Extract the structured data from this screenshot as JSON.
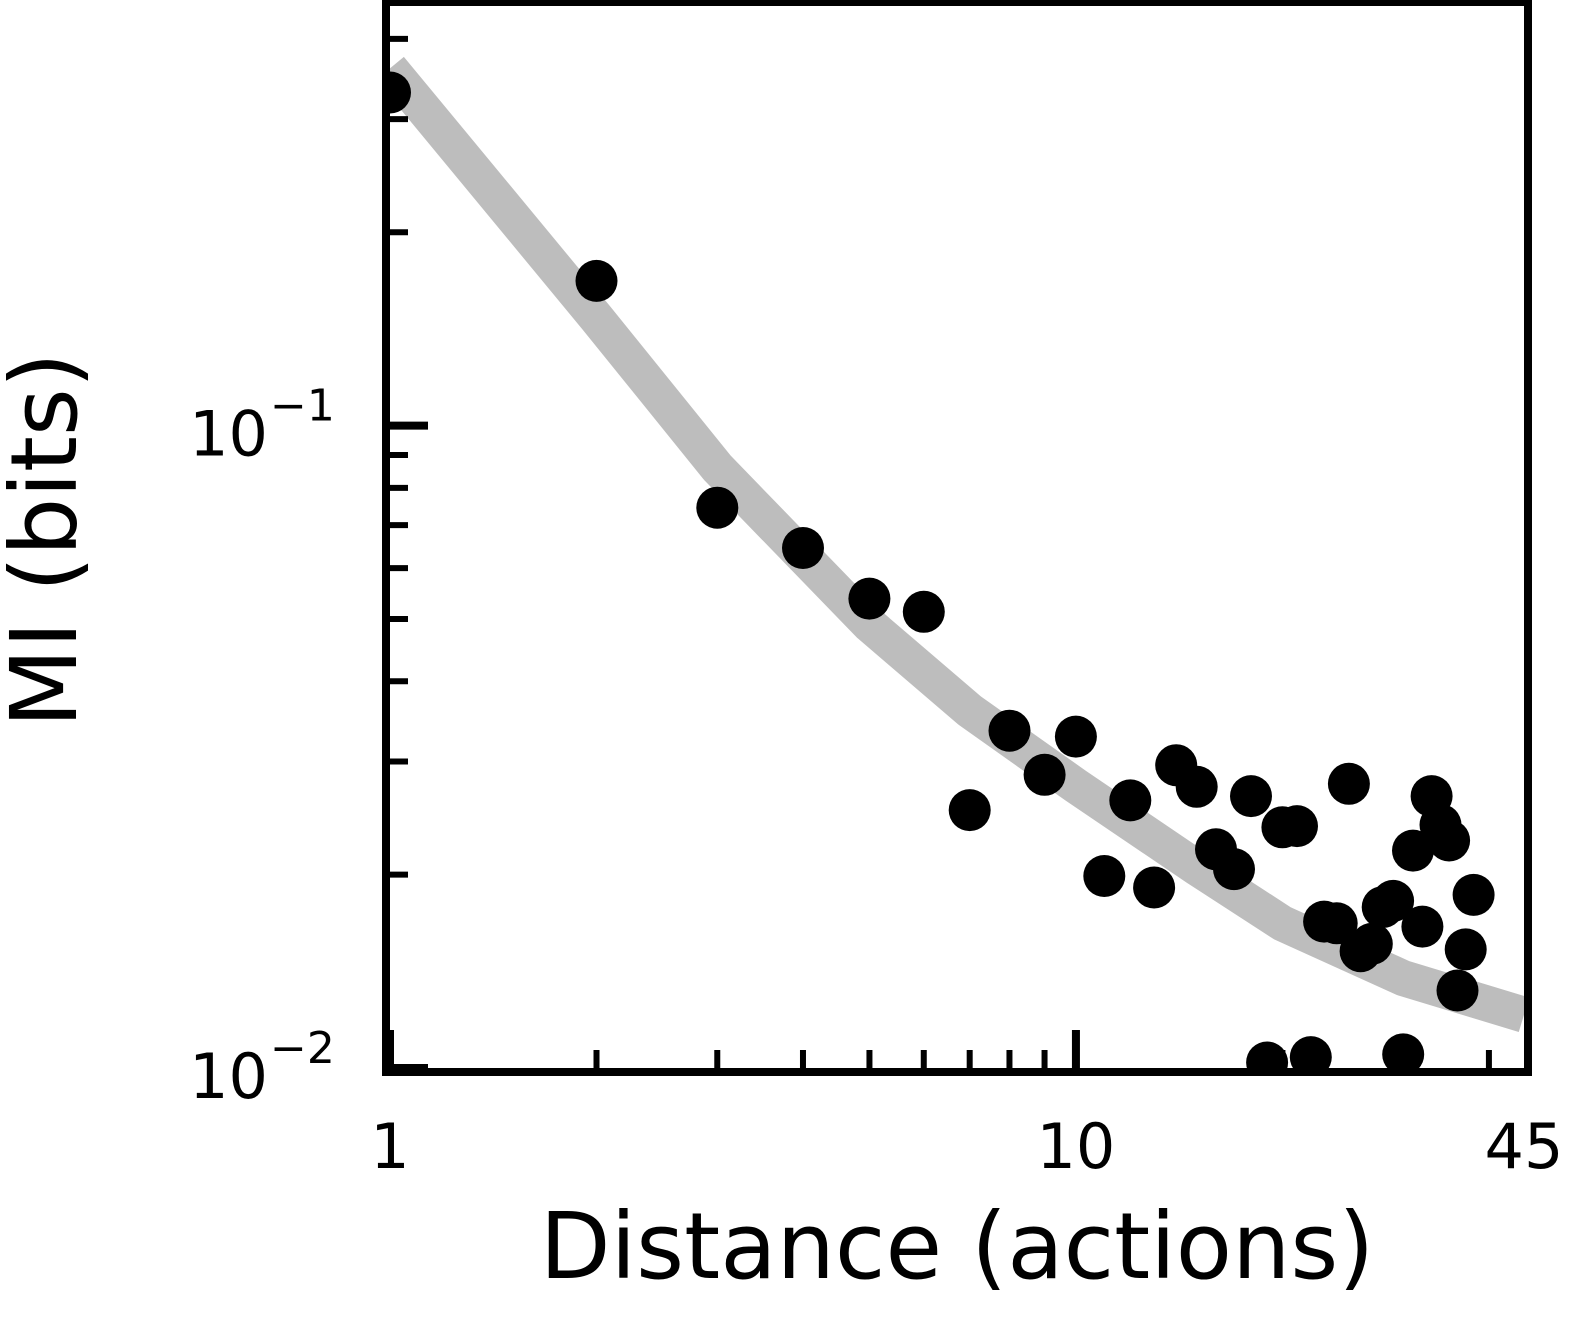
{
  "chart_data": {
    "type": "scatter",
    "xlabel": "Distance (actions)",
    "ylabel": "MI (bits)",
    "x_scale": "log",
    "y_scale": "log",
    "xlim": [
      1,
      45
    ],
    "ylim": [
      0.01,
      0.45
    ],
    "x_ticks": [
      {
        "value": 1,
        "label": "1"
      },
      {
        "value": 10,
        "label": "10"
      },
      {
        "value": 45,
        "label": "45"
      }
    ],
    "y_ticks": [
      {
        "value": 0.1,
        "base": "10",
        "exp": "−1"
      },
      {
        "value": 0.01,
        "base": "10",
        "exp": "−2"
      }
    ],
    "grid": false,
    "colors": {
      "points": "#000000",
      "fit": "#bdbdbd",
      "axes": "#000000"
    },
    "series": [
      {
        "kind": "points",
        "points": [
          {
            "x": 1,
            "y": 0.33
          },
          {
            "x": 2,
            "y": 0.168
          },
          {
            "x": 3,
            "y": 0.0745
          },
          {
            "x": 4,
            "y": 0.0645
          },
          {
            "x": 5,
            "y": 0.0538
          },
          {
            "x": 6,
            "y": 0.0513
          },
          {
            "x": 7,
            "y": 0.0252
          },
          {
            "x": 8,
            "y": 0.0335
          },
          {
            "x": 9,
            "y": 0.0286
          },
          {
            "x": 10,
            "y": 0.0328
          },
          {
            "x": 11,
            "y": 0.0199
          },
          {
            "x": 12,
            "y": 0.0261
          },
          {
            "x": 13,
            "y": 0.0191
          },
          {
            "x": 14,
            "y": 0.0296
          },
          {
            "x": 15,
            "y": 0.0274
          },
          {
            "x": 16,
            "y": 0.0219
          },
          {
            "x": 17,
            "y": 0.0204
          },
          {
            "x": 18,
            "y": 0.0265
          },
          {
            "x": 19,
            "y": 0.0102
          },
          {
            "x": 20,
            "y": 0.0237
          },
          {
            "x": 21,
            "y": 0.0238
          },
          {
            "x": 22,
            "y": 0.0104
          },
          {
            "x": 23,
            "y": 0.0169
          },
          {
            "x": 24,
            "y": 0.0168
          },
          {
            "x": 25,
            "y": 0.0277
          },
          {
            "x": 26,
            "y": 0.0152
          },
          {
            "x": 27,
            "y": 0.0156
          },
          {
            "x": 28,
            "y": 0.0178
          },
          {
            "x": 29,
            "y": 0.0182
          },
          {
            "x": 30,
            "y": 0.0105
          },
          {
            "x": 31,
            "y": 0.0218
          },
          {
            "x": 32,
            "y": 0.0166
          },
          {
            "x": 33,
            "y": 0.0265
          },
          {
            "x": 34,
            "y": 0.0239
          },
          {
            "x": 35,
            "y": 0.0226
          },
          {
            "x": 36,
            "y": 0.0132
          },
          {
            "x": 37,
            "y": 0.0153
          },
          {
            "x": 38,
            "y": 0.0186
          }
        ]
      },
      {
        "kind": "fit",
        "points": [
          {
            "x": 1,
            "y": 0.36
          },
          {
            "x": 2,
            "y": 0.147
          },
          {
            "x": 3,
            "y": 0.086
          },
          {
            "x": 5,
            "y": 0.049
          },
          {
            "x": 7,
            "y": 0.036
          },
          {
            "x": 10,
            "y": 0.0275
          },
          {
            "x": 15,
            "y": 0.0205
          },
          {
            "x": 20,
            "y": 0.0168
          },
          {
            "x": 30,
            "y": 0.0138
          },
          {
            "x": 45,
            "y": 0.0121
          }
        ]
      }
    ]
  }
}
